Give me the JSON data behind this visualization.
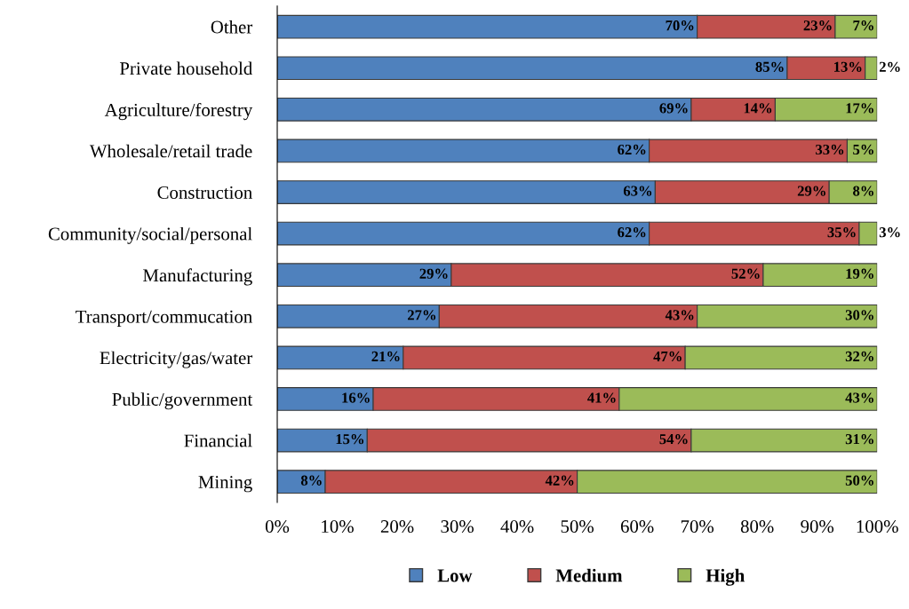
{
  "chart_data": {
    "type": "bar",
    "orientation": "horizontal",
    "stacked": true,
    "categories": [
      "Other",
      "Private household",
      "Agriculture/forestry",
      "Wholesale/retail trade",
      "Construction",
      "Community/social/personal",
      "Manufacturing",
      "Transport/commucation",
      "Electricity/gas/water",
      "Public/government",
      "Financial",
      "Mining"
    ],
    "series": [
      {
        "name": "Low",
        "color": "#4f81bd",
        "values": [
          70,
          85,
          69,
          62,
          63,
          62,
          29,
          27,
          21,
          16,
          15,
          8
        ],
        "value_labels": [
          "70%",
          "85%",
          "69%",
          "62%",
          "63%",
          "62%",
          "29%",
          "27%",
          "21%",
          "16%",
          "15%",
          "8%"
        ]
      },
      {
        "name": "Medium",
        "color": "#c0504d",
        "values": [
          23,
          13,
          14,
          33,
          29,
          35,
          52,
          43,
          47,
          41,
          54,
          42
        ],
        "value_labels": [
          "23%",
          "13%",
          "14%",
          "33%",
          "29%",
          "35%",
          "52%",
          "43%",
          "47%",
          "41%",
          "54%",
          "42%"
        ]
      },
      {
        "name": "High",
        "color": "#9bbb59",
        "values": [
          7,
          2,
          17,
          5,
          8,
          3,
          19,
          30,
          32,
          43,
          31,
          50
        ],
        "value_labels": [
          "7%",
          "2%",
          "17%",
          "5%",
          "8%",
          "3%",
          "19%",
          "30%",
          "32%",
          "43%",
          "31%",
          "50%"
        ]
      }
    ],
    "xlim": [
      0,
      100
    ],
    "xticks": [
      {
        "value": 0,
        "label": "0%"
      },
      {
        "value": 10,
        "label": "10%"
      },
      {
        "value": 20,
        "label": "20%"
      },
      {
        "value": 30,
        "label": "30%"
      },
      {
        "value": 40,
        "label": "40%"
      },
      {
        "value": 50,
        "label": "50%"
      },
      {
        "value": 60,
        "label": "60%"
      },
      {
        "value": 70,
        "label": "70%"
      },
      {
        "value": 80,
        "label": "80%"
      },
      {
        "value": 90,
        "label": "90%"
      },
      {
        "value": 100,
        "label": "100%"
      }
    ],
    "grid": false,
    "legend": "bottom"
  }
}
